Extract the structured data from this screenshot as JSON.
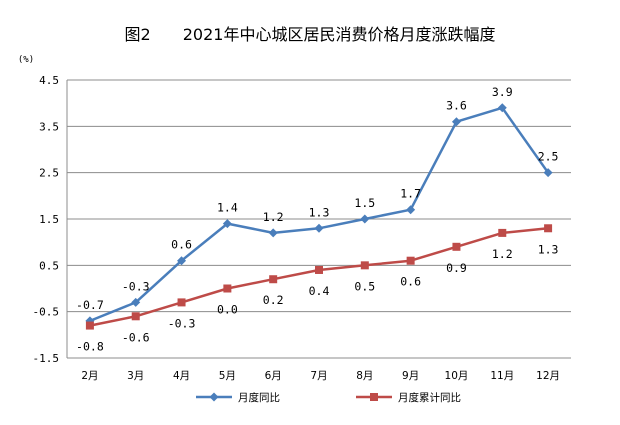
{
  "chart_data": {
    "type": "line",
    "title": "图2　　2021年中心城区居民消费价格月度涨跌幅度",
    "unit_label": "(%)",
    "categories": [
      "2月",
      "3月",
      "4月",
      "5月",
      "6月",
      "7月",
      "8月",
      "9月",
      "10月",
      "11月",
      "12月"
    ],
    "ylim": [
      -1.5,
      4.5
    ],
    "yticks": [
      -1.5,
      -0.5,
      0.5,
      1.5,
      2.5,
      3.5,
      4.5
    ],
    "ytick_labels": [
      "-1.5",
      "-0.5",
      "0.5",
      "1.5",
      "2.5",
      "3.5",
      "4.5"
    ],
    "grid": true,
    "legend_position": "bottom",
    "series": [
      {
        "name": "月度同比",
        "color": "#4A7EBB",
        "marker": "diamond",
        "values": [
          -0.7,
          -0.3,
          0.6,
          1.4,
          1.2,
          1.3,
          1.5,
          1.7,
          3.6,
          3.9,
          2.5
        ],
        "labels": [
          "-0.7",
          "-0.3",
          "0.6",
          "1.4",
          "1.2",
          "1.3",
          "1.5",
          "1.7",
          "3.6",
          "3.9",
          "2.5"
        ],
        "label_position": "above"
      },
      {
        "name": "月度累计同比",
        "color": "#BE4B48",
        "marker": "square",
        "values": [
          -0.8,
          -0.6,
          -0.3,
          0.0,
          0.2,
          0.4,
          0.5,
          0.6,
          0.9,
          1.2,
          1.3
        ],
        "labels": [
          "-0.8",
          "-0.6",
          "-0.3",
          "0.0",
          "0.2",
          "0.4",
          "0.5",
          "0.6",
          "0.9",
          "1.2",
          "1.3"
        ],
        "label_position": "below"
      }
    ]
  }
}
